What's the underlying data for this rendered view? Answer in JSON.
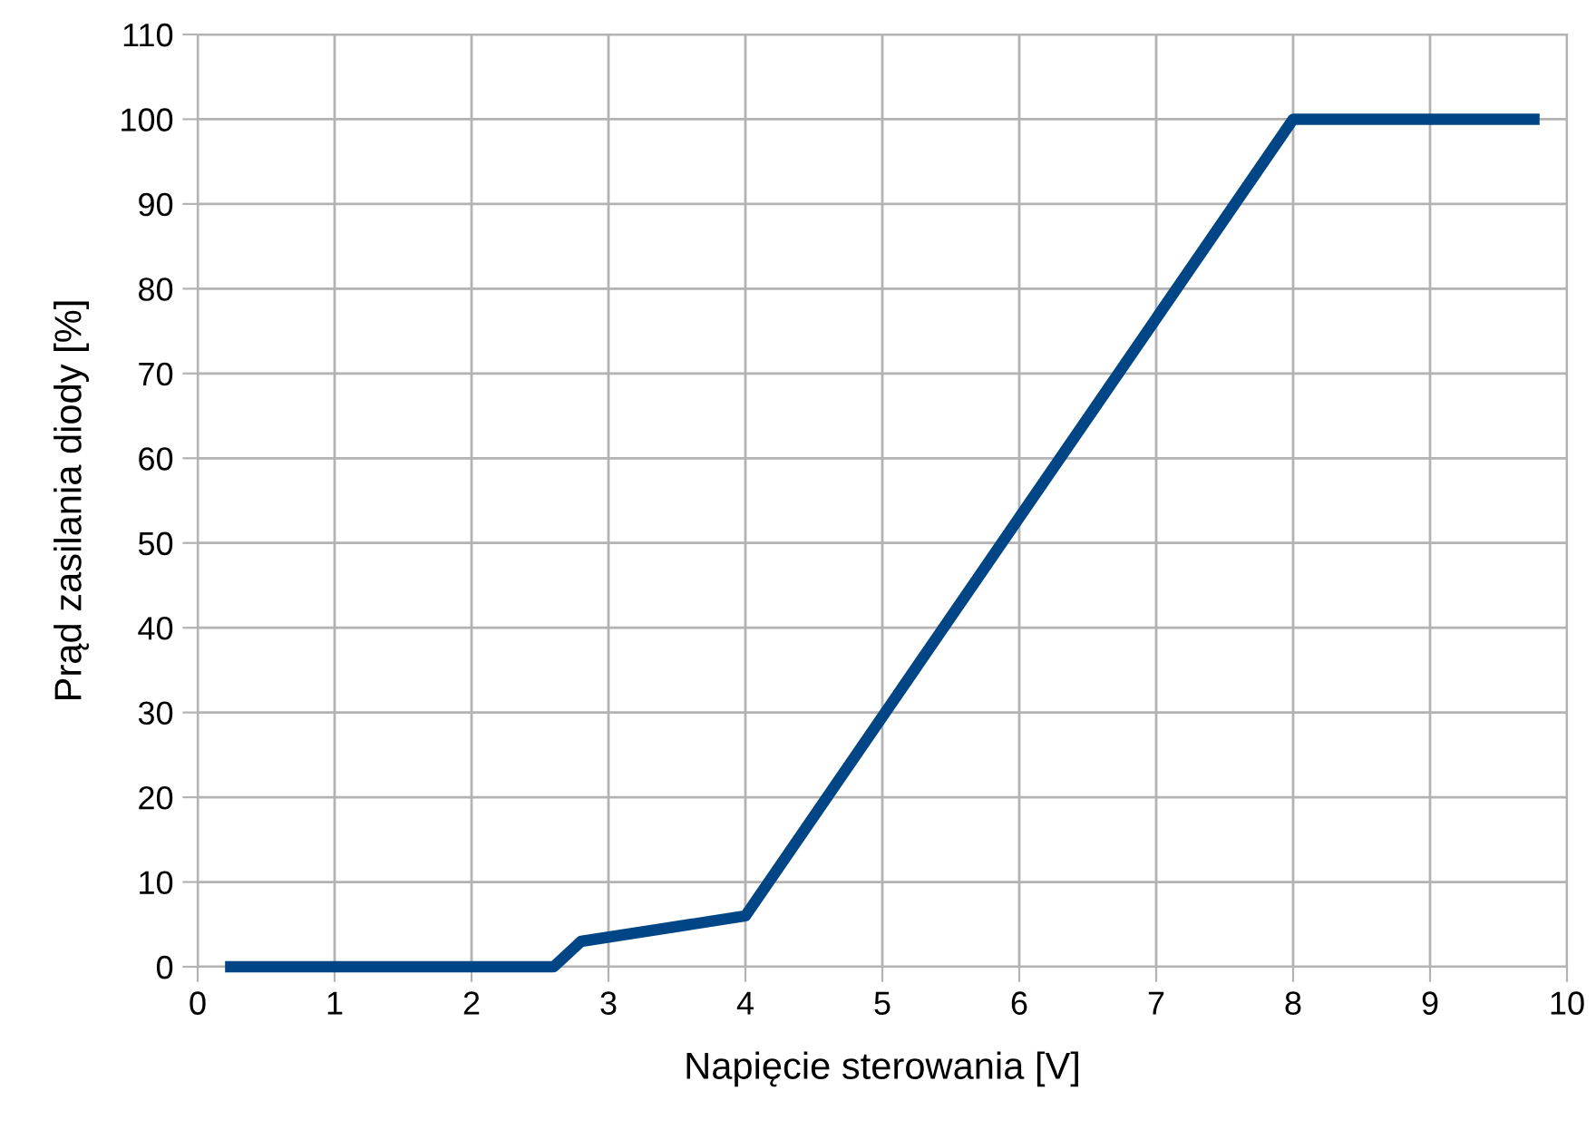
{
  "chart_data": {
    "type": "line",
    "xlabel": "Napięcie sterowania [V]",
    "ylabel": "Prąd zasilania diody [%]",
    "x": [
      0.2,
      2.6,
      2.8,
      4,
      8,
      9.8
    ],
    "series": [
      {
        "color": "#004586",
        "values": [
          0,
          0,
          3,
          6,
          100,
          100
        ]
      }
    ],
    "xlim": [
      0,
      10
    ],
    "xticks": [
      0,
      1,
      2,
      3,
      4,
      5,
      6,
      7,
      8,
      9,
      10
    ],
    "ylim": [
      0,
      110
    ],
    "yticks": [
      0,
      10,
      20,
      30,
      40,
      50,
      60,
      70,
      80,
      90,
      100,
      110
    ],
    "grid": true
  }
}
